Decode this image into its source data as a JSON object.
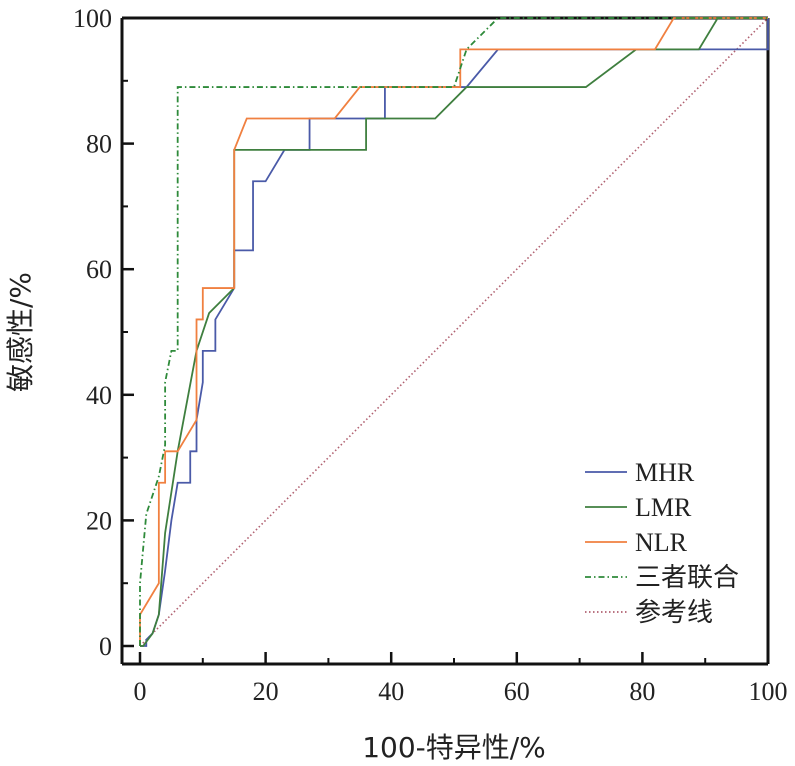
{
  "chart_data": {
    "type": "line",
    "xlabel": "100-特异性/%",
    "ylabel": "敏感性/%",
    "xlim": [
      0,
      100
    ],
    "ylim": [
      0,
      100
    ],
    "xticks": [
      0,
      20,
      40,
      60,
      80,
      100
    ],
    "yticks": [
      0,
      20,
      40,
      60,
      80,
      100
    ],
    "grid": false,
    "legend_position": "bottom-right",
    "series": [
      {
        "name": "MHR",
        "color": "#4a5aa8",
        "style": "solid",
        "x": [
          0,
          1,
          1,
          2,
          3,
          4,
          5,
          6,
          6,
          8,
          8,
          9,
          9,
          10,
          10,
          12,
          12,
          15,
          15,
          18,
          18,
          20,
          23,
          27,
          27,
          30,
          39,
          39,
          52,
          57,
          95,
          95,
          100,
          100
        ],
        "y": [
          0,
          0,
          1,
          2,
          5,
          12,
          20,
          26,
          26,
          26,
          31,
          31,
          36,
          42,
          47,
          47,
          52,
          57,
          63,
          63,
          74,
          74,
          79,
          79,
          84,
          84,
          84,
          89,
          89,
          95,
          95,
          95,
          95,
          100
        ]
      },
      {
        "name": "LMR",
        "color": "#3f7f3f",
        "style": "solid",
        "x": [
          0,
          0.5,
          2,
          3,
          4,
          6,
          9,
          11,
          15,
          15,
          36,
          36,
          47,
          52,
          71,
          79,
          89,
          92,
          100
        ],
        "y": [
          0,
          0,
          2,
          5,
          18,
          31,
          47,
          53,
          57,
          79,
          79,
          84,
          84,
          89,
          89,
          95,
          95,
          100,
          100
        ]
      },
      {
        "name": "NLR",
        "color": "#f08040",
        "style": "solid",
        "x": [
          0,
          0,
          3,
          3,
          4,
          4,
          6,
          9,
          9,
          10,
          10,
          15,
          15,
          17,
          31,
          35,
          51,
          51,
          82,
          85,
          100
        ],
        "y": [
          0,
          5,
          10,
          26,
          26,
          31,
          31,
          36,
          52,
          52,
          57,
          57,
          79,
          84,
          84,
          89,
          89,
          95,
          95,
          100,
          100
        ]
      },
      {
        "name": "三者联合",
        "color": "#2e8a3a",
        "style": "dashdot",
        "x": [
          0,
          0,
          1,
          3,
          4,
          4,
          5,
          6,
          6,
          50,
          52,
          57,
          100
        ],
        "y": [
          0,
          10,
          21,
          27,
          32,
          42,
          47,
          47,
          89,
          89,
          95,
          100,
          100
        ]
      },
      {
        "name": "参考线",
        "color": "#b06070",
        "style": "dotted",
        "x": [
          0,
          100
        ],
        "y": [
          0,
          100
        ]
      }
    ]
  }
}
